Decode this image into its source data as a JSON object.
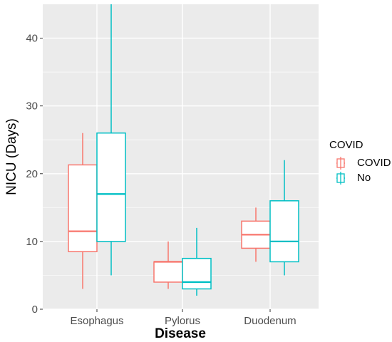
{
  "chart_data": {
    "type": "boxplot",
    "xlabel": "Disease",
    "ylabel": "NICU (Days)",
    "categories": [
      "Esophagus",
      "Pylorus",
      "Duodenum"
    ],
    "ylim": [
      0,
      45
    ],
    "yticks": [
      0,
      10,
      20,
      30,
      40
    ],
    "grid": true,
    "legend": {
      "title": "COVID",
      "position": "right",
      "entries": [
        "COVID",
        "No"
      ]
    },
    "colors": {
      "COVID": "#F8766D",
      "No": "#00BFC4",
      "panel": "#EBEBEB",
      "grid": "#FFFFFF"
    },
    "series": [
      {
        "name": "COVID",
        "boxes": [
          {
            "category": "Esophagus",
            "min": 3,
            "q1": 8.5,
            "median": 11.5,
            "q3": 21.3,
            "max": 26
          },
          {
            "category": "Pylorus",
            "min": 3,
            "q1": 4,
            "median": 7,
            "q3": 7,
            "max": 10
          },
          {
            "category": "Duodenum",
            "min": 7,
            "q1": 9,
            "median": 11,
            "q3": 13,
            "max": 15
          }
        ]
      },
      {
        "name": "No",
        "boxes": [
          {
            "category": "Esophagus",
            "min": 5,
            "q1": 10,
            "median": 17,
            "q3": 26,
            "max": 45
          },
          {
            "category": "Pylorus",
            "min": 2,
            "q1": 3,
            "median": 4,
            "q3": 7.5,
            "max": 12
          },
          {
            "category": "Duodenum",
            "min": 5,
            "q1": 7,
            "median": 10,
            "q3": 16,
            "max": 22
          }
        ]
      }
    ]
  }
}
